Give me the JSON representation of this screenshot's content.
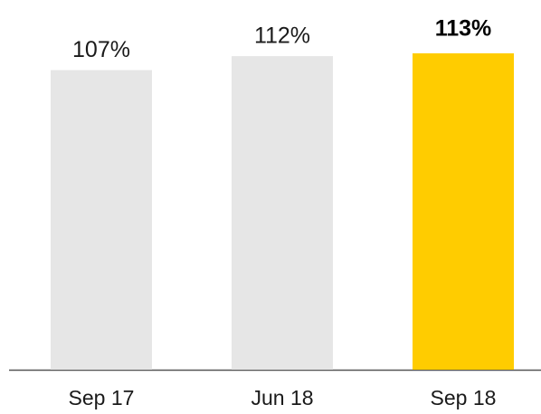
{
  "chart_data": {
    "type": "bar",
    "categories": [
      "Sep 17",
      "Jun 18",
      "Sep 18"
    ],
    "values": [
      107,
      112,
      113
    ],
    "value_labels": [
      "107%",
      "112%",
      "113%"
    ],
    "colors": [
      "#e6e6e6",
      "#e6e6e6",
      "#ffcc00"
    ]
  }
}
